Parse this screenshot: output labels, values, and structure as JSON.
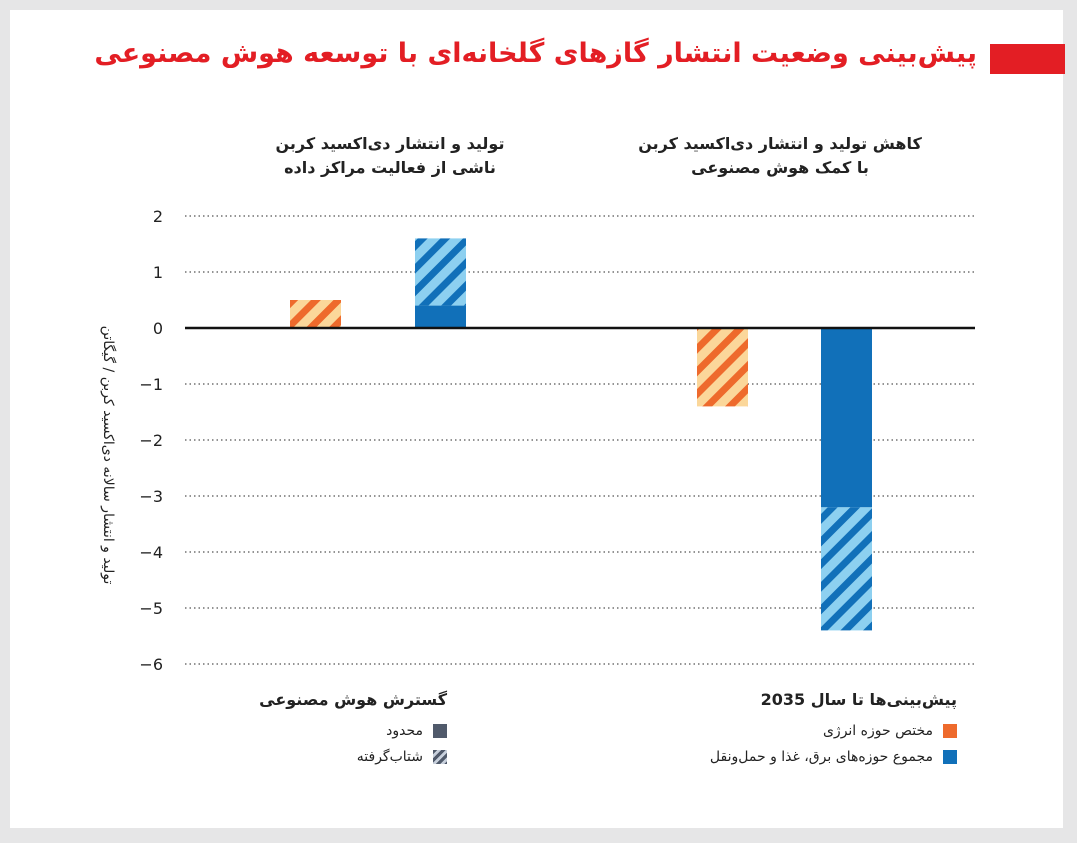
{
  "header": {
    "title": "پیش‌بینی وضعیت انتشار گازهای گلخانه‌ای با توسعه هوش مصنوعی"
  },
  "chart_data": {
    "type": "bar",
    "ylabel": "تولید و انتشار سالانه دی‌اکسید کربن / گیگاتن",
    "ylim": [
      -6,
      2
    ],
    "yticks": [
      2,
      1,
      0,
      -1,
      -2,
      -3,
      -4,
      -5,
      -6
    ],
    "grid": true,
    "groups": [
      {
        "label_line1": "تولید و انتشار دی‌اکسید کربن",
        "label_line2": "ناشی از فعالیت مراکز داده",
        "bars": [
          {
            "series": "مختص حوزه انرژی",
            "limited": 0,
            "accelerated": 0.5
          },
          {
            "series": "مجموع حوزه‌های برق، غذا و حمل‌ونقل",
            "limited": 0.4,
            "accelerated": 1.6
          }
        ]
      },
      {
        "label_line1": "کاهش تولید و انتشار دی‌اکسید کربن",
        "label_line2": "با کمک هوش مصنوعی",
        "bars": [
          {
            "series": "مختص حوزه انرژی",
            "limited": 0,
            "accelerated": -1.4
          },
          {
            "series": "مجموع حوزه‌های برق، غذا و حمل‌ونقل",
            "limited": -3.2,
            "accelerated": -5.4
          }
        ]
      }
    ],
    "colors": {
      "energy": "#ee6a2c",
      "energy_light": "#fbd79a",
      "total": "#1170b9",
      "total_light": "#8dd0f0",
      "limited": "#505a6b"
    }
  },
  "legend": {
    "ai_title": "گسترش هوش مصنوعی",
    "ai_items": [
      "محدود",
      "شتاب‌گرفته"
    ],
    "forecast_title": "پیش‌بینی‌ها تا سال 2035",
    "forecast_items": [
      "مختص حوزه انرژی",
      "مجموع حوزه‌های برق، غذا و حمل‌ونقل"
    ]
  }
}
